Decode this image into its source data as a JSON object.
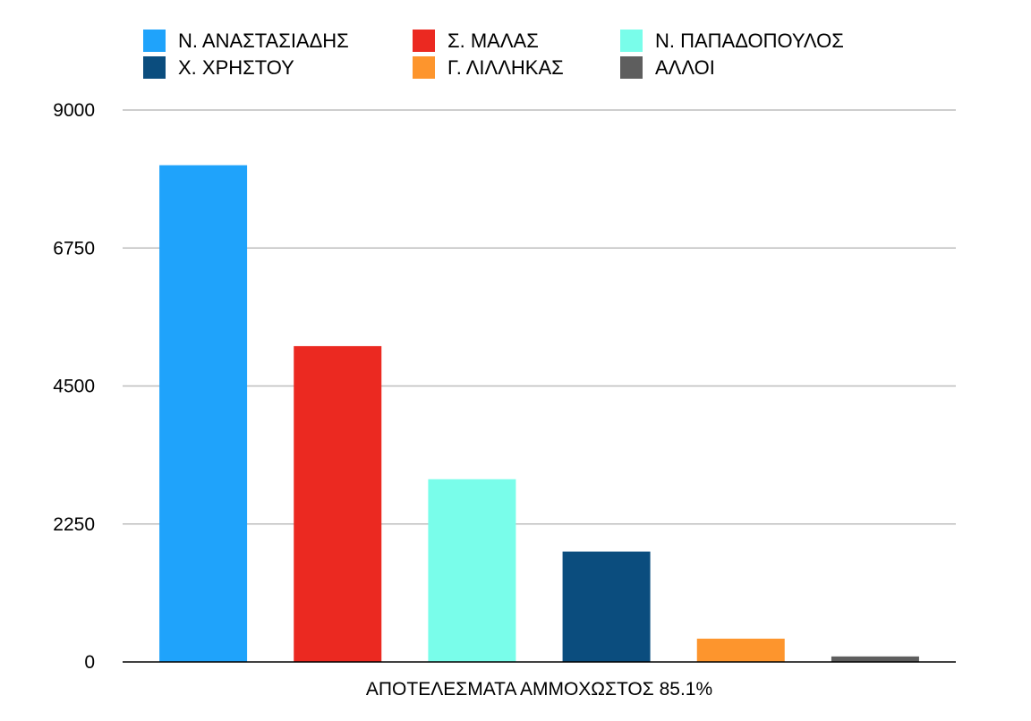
{
  "chart_data": {
    "type": "bar",
    "xlabel": "ΑΠΟΤΕΛΕΣΜΑΤΑ ΑΜΜΟΧΩΣΤΟΣ 85.1%",
    "ylabel": "",
    "ylim": [
      0,
      9000
    ],
    "yticks": [
      "0",
      "2250",
      "4500",
      "6750",
      "9000"
    ],
    "grid": true,
    "legend_position": "top",
    "series": [
      {
        "name": "Ν. ΑΝΑΣΤΑΣΙΑΔΗΣ",
        "value": 8100,
        "color": "#1fa3fb"
      },
      {
        "name": "Σ. ΜΑΛΑΣ",
        "value": 5150,
        "color": "#eb2921"
      },
      {
        "name": "Ν. ΠΑΠΑΔΟΠΟΥΛΟΣ",
        "value": 2980,
        "color": "#79fdea"
      },
      {
        "name": "Χ. ΧΡΗΣΤΟΥ",
        "value": 1800,
        "color": "#0b4d7e"
      },
      {
        "name": "Γ. ΛΙΛΛΗΚΑΣ",
        "value": 380,
        "color": "#fd952d"
      },
      {
        "name": "ΑΛΛΟΙ",
        "value": 90,
        "color": "#5e5e5e"
      }
    ]
  }
}
